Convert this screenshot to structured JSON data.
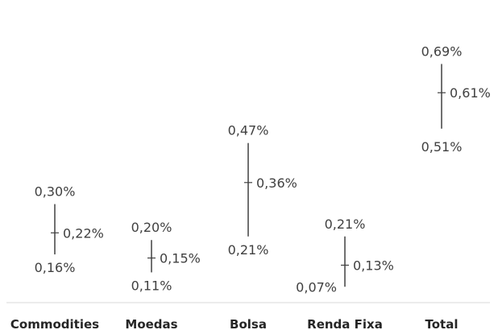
{
  "chart_data": {
    "type": "high-low-close",
    "categories": [
      "Commodities",
      "Moedas",
      "Bolsa",
      "Renda Fixa",
      "Total"
    ],
    "series": [
      {
        "name": "",
        "values": [
          0.3,
          0.2,
          0.47,
          0.21,
          0.69
        ],
        "labels": [
          "0,30%",
          "0,20%",
          "0,47%",
          "0,21%",
          "0,69%"
        ]
      },
      {
        "name": "",
        "values": [
          0.22,
          0.15,
          0.36,
          0.13,
          0.61
        ],
        "labels": [
          "0,22%",
          "0,15%",
          "0,36%",
          "0,13%",
          "0,61%"
        ]
      },
      {
        "name": "",
        "values": [
          0.16,
          0.11,
          0.21,
          0.07,
          0.51
        ],
        "labels": [
          "0,16%",
          "0,11%",
          "0,21%",
          "0,07%",
          "0,51%"
        ]
      }
    ],
    "title": "",
    "xlabel": "",
    "ylabel": "",
    "ylim": [
      0,
      0.8
    ],
    "grid": false,
    "legend": "none",
    "colors": {
      "line": "#404040",
      "text": "#404040",
      "axis": "#d9d9d9"
    }
  }
}
